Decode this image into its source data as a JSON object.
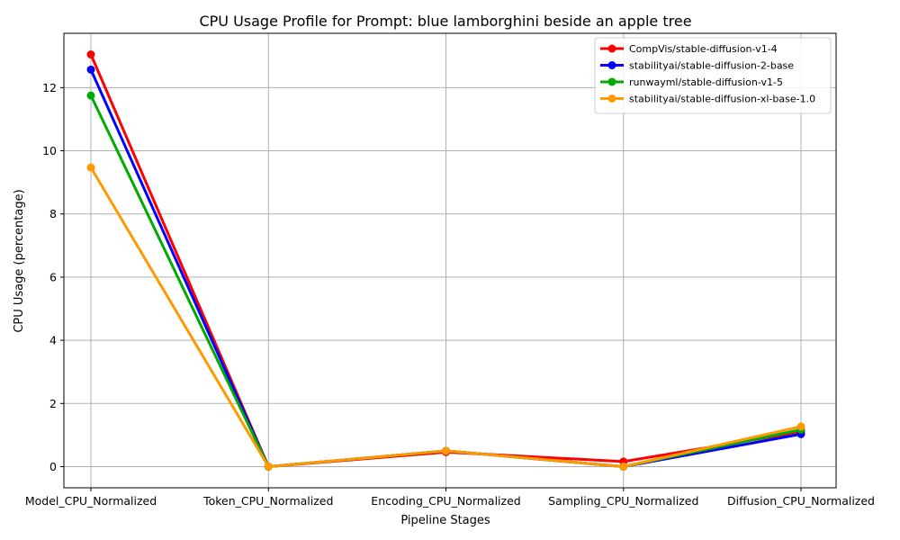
{
  "chart_data": {
    "type": "line",
    "title": "CPU Usage Profile for Prompt: blue lamborghini beside an apple tree",
    "xlabel": "Pipeline Stages",
    "ylabel": "CPU Usage (percentage)",
    "categories": [
      "Model_CPU_Normalized",
      "Token_CPU_Normalized",
      "Encoding_CPU_Normalized",
      "Sampling_CPU_Normalized",
      "Diffusion_CPU_Normalized"
    ],
    "ylim": [
      -0.67,
      13.72
    ],
    "yticks": [
      0,
      2,
      4,
      6,
      8,
      10,
      12
    ],
    "grid": true,
    "legend_position": "top-right",
    "series": [
      {
        "name": "CompVis/stable-diffusion-v1-4",
        "color": "#ff0000",
        "values": [
          13.05,
          0.0,
          0.46,
          0.16,
          1.1
        ]
      },
      {
        "name": "stabilityai/stable-diffusion-2-base",
        "color": "#0000ff",
        "values": [
          12.57,
          0.0,
          0.5,
          0.0,
          1.03
        ]
      },
      {
        "name": "runwayml/stable-diffusion-v1-5",
        "color": "#00aa00",
        "values": [
          11.75,
          0.0,
          0.5,
          0.0,
          1.17
        ]
      },
      {
        "name": "stabilityai/stable-diffusion-xl-base-1.0",
        "color": "#ff9900",
        "values": [
          9.47,
          0.0,
          0.5,
          0.0,
          1.27
        ]
      }
    ]
  }
}
